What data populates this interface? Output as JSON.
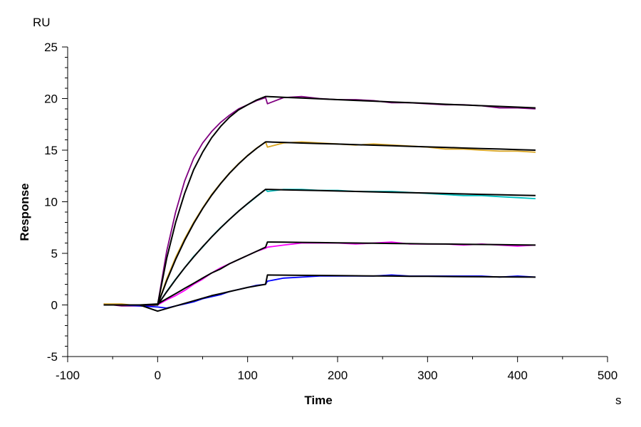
{
  "chart_data": {
    "type": "line",
    "title": "",
    "xlabel": "Time",
    "ylabel": "Response",
    "x_unit": "s",
    "y_unit": "RU",
    "xlim": [
      -100,
      500
    ],
    "ylim": [
      -5,
      25
    ],
    "x_ticks": [
      -100,
      0,
      100,
      200,
      300,
      400,
      500
    ],
    "y_ticks": [
      -5,
      0,
      5,
      10,
      15,
      20,
      25
    ],
    "x_minor_step": 50,
    "y_minor_step": 1,
    "grid": false,
    "legend": "none",
    "x": [
      -60,
      -40,
      -20,
      0,
      10,
      20,
      30,
      40,
      50,
      60,
      70,
      80,
      90,
      100,
      110,
      120,
      122,
      140,
      160,
      180,
      200,
      220,
      240,
      260,
      280,
      300,
      320,
      340,
      360,
      380,
      400,
      420
    ],
    "series": [
      {
        "kind": "data",
        "color": "#800080",
        "values": [
          0.1,
          -0.1,
          -0.1,
          0,
          5.2,
          9.0,
          12.0,
          14.2,
          15.7,
          16.8,
          17.7,
          18.4,
          19.0,
          19.4,
          19.8,
          20.1,
          19.5,
          20.1,
          20.2,
          20.0,
          19.9,
          19.9,
          19.8,
          19.6,
          19.6,
          19.5,
          19.4,
          19.4,
          19.3,
          19.1,
          19.1,
          19.0
        ]
      },
      {
        "kind": "fit",
        "color": "#000000",
        "values": [
          0,
          0,
          0,
          0,
          4.5,
          8.0,
          10.8,
          13.1,
          14.8,
          16.2,
          17.3,
          18.2,
          18.9,
          19.4,
          19.86,
          20.2,
          20.2,
          20.12,
          20.05,
          19.97,
          19.9,
          19.82,
          19.75,
          19.67,
          19.6,
          19.53,
          19.45,
          19.38,
          19.31,
          19.24,
          19.17,
          19.1
        ]
      },
      {
        "kind": "data",
        "color": "#DAA520",
        "values": [
          0.1,
          0.1,
          -0.1,
          0,
          2.5,
          4.6,
          6.4,
          8.0,
          9.4,
          10.7,
          11.8,
          12.8,
          13.7,
          14.5,
          15.2,
          15.8,
          15.3,
          15.7,
          15.8,
          15.7,
          15.6,
          15.5,
          15.6,
          15.5,
          15.4,
          15.3,
          15.1,
          15.1,
          15.0,
          14.9,
          14.9,
          14.8
        ]
      },
      {
        "kind": "fit",
        "color": "#000000",
        "values": [
          0,
          0,
          0,
          0,
          2.34,
          4.41,
          6.25,
          7.89,
          9.34,
          10.62,
          11.76,
          12.77,
          13.66,
          14.47,
          15.17,
          15.8,
          15.8,
          15.75,
          15.69,
          15.64,
          15.59,
          15.53,
          15.48,
          15.43,
          15.37,
          15.32,
          15.27,
          15.21,
          15.16,
          15.11,
          15.05,
          15.0
        ]
      },
      {
        "kind": "data",
        "color": "#00C0C0",
        "values": [
          0,
          0,
          0,
          0,
          1.3,
          2.5,
          3.6,
          4.7,
          5.6,
          6.6,
          7.5,
          8.3,
          9.1,
          9.8,
          10.5,
          11.2,
          11.0,
          11.2,
          11.2,
          11.1,
          11.1,
          11.0,
          11.0,
          11.0,
          10.9,
          10.8,
          10.7,
          10.6,
          10.6,
          10.5,
          10.4,
          10.3
        ]
      },
      {
        "kind": "fit",
        "color": "#000000",
        "values": [
          0,
          0,
          0,
          0,
          1.27,
          2.46,
          3.59,
          4.65,
          5.64,
          6.58,
          7.47,
          8.3,
          9.09,
          9.83,
          10.53,
          11.2,
          11.2,
          11.16,
          11.12,
          11.08,
          11.04,
          11.0,
          10.96,
          10.92,
          10.88,
          10.84,
          10.8,
          10.76,
          10.72,
          10.68,
          10.64,
          10.6
        ]
      },
      {
        "kind": "data",
        "color": "#FF00FF",
        "values": [
          0,
          0,
          -0.1,
          0,
          0.5,
          0.9,
          1.4,
          2.0,
          2.5,
          3.1,
          3.6,
          4.0,
          4.4,
          4.8,
          5.2,
          5.5,
          5.6,
          5.8,
          6.0,
          6.0,
          6.0,
          5.9,
          6.0,
          6.1,
          5.9,
          5.9,
          5.9,
          5.8,
          5.9,
          5.8,
          5.7,
          5.8
        ]
      },
      {
        "kind": "fit",
        "color": "#000000",
        "values": [
          0,
          0,
          0,
          0.1,
          0.6,
          1.1,
          1.6,
          2.1,
          2.6,
          3.1,
          3.5,
          4.0,
          4.4,
          4.8,
          5.2,
          5.6,
          6.1,
          6.08,
          6.06,
          6.04,
          6.02,
          6.0,
          5.98,
          5.96,
          5.94,
          5.92,
          5.9,
          5.88,
          5.86,
          5.84,
          5.82,
          5.8
        ]
      },
      {
        "kind": "data",
        "color": "#0000FF",
        "values": [
          0,
          0,
          -0.1,
          -0.2,
          -0.3,
          -0.1,
          0.1,
          0.3,
          0.6,
          0.8,
          1.0,
          1.3,
          1.5,
          1.7,
          1.9,
          2.0,
          2.3,
          2.6,
          2.7,
          2.8,
          2.8,
          2.8,
          2.8,
          2.9,
          2.8,
          2.8,
          2.8,
          2.8,
          2.8,
          2.7,
          2.8,
          2.7
        ]
      },
      {
        "kind": "fit",
        "color": "#000000",
        "values": [
          0,
          0,
          0,
          -0.6,
          -0.35,
          -0.1,
          0.15,
          0.4,
          0.65,
          0.9,
          1.1,
          1.3,
          1.5,
          1.7,
          1.85,
          2.0,
          2.9,
          2.89,
          2.87,
          2.86,
          2.84,
          2.83,
          2.81,
          2.8,
          2.78,
          2.77,
          2.76,
          2.74,
          2.73,
          2.72,
          2.71,
          2.7
        ]
      }
    ]
  }
}
